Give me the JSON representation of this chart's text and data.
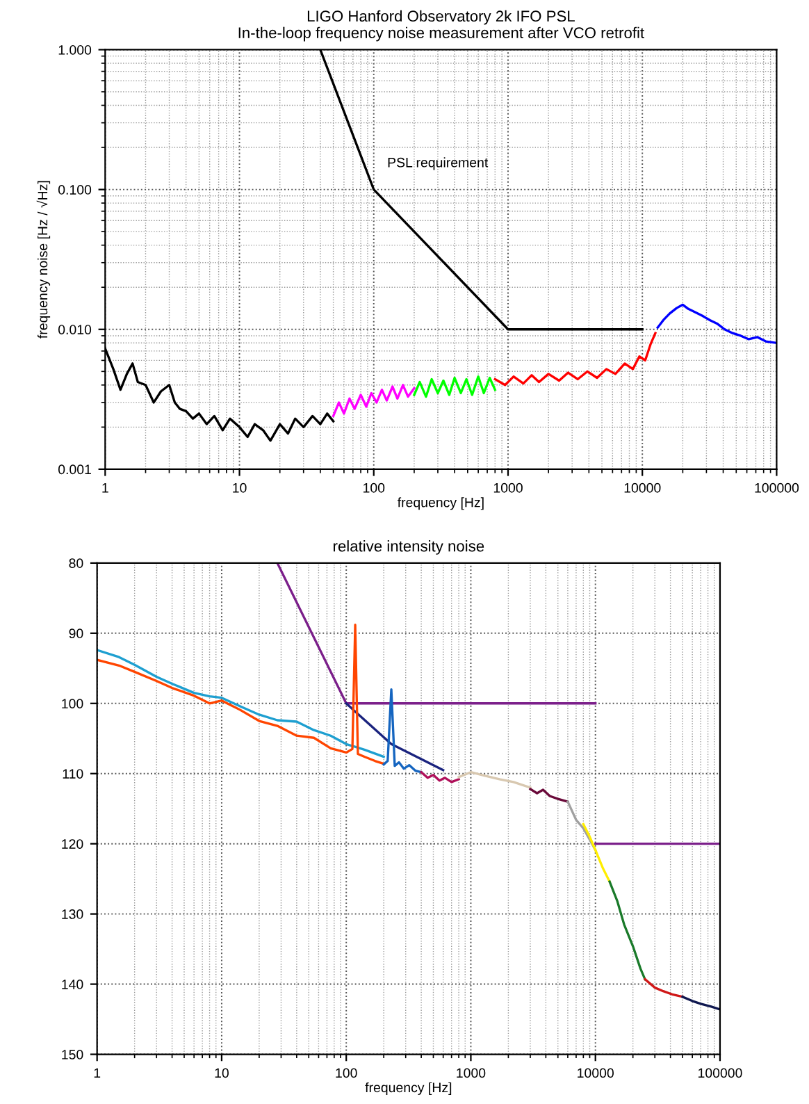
{
  "chart_data": [
    {
      "type": "line",
      "title": "LIGO Hanford Observatory 2k IFO PSL",
      "subtitle": "In-the-loop frequency noise measurement after VCO retrofit",
      "xlabel": "frequency [Hz]",
      "ylabel": "frequency noise [Hz / √Hz]",
      "log": "xy",
      "grid": true,
      "line_style": "solid",
      "marker": "none",
      "xlim": [
        1,
        100000
      ],
      "xticks": [
        1,
        10,
        100,
        1000,
        10000,
        100000
      ],
      "ylim": [
        0.001,
        1
      ],
      "yticks": [
        {
          "value": 0.001,
          "label": "0.001"
        },
        {
          "value": 0.01,
          "label": "0.010"
        },
        {
          "value": 0.1,
          "label": "0.100"
        },
        {
          "value": 1,
          "label": "1.000"
        }
      ],
      "annotations": [
        "PSL requirement"
      ],
      "series": [
        {
          "color": "#000000",
          "x": [
            1,
            1.15,
            1.3,
            1.45,
            1.6,
            1.75,
            2,
            2.3,
            2.6,
            3,
            3.3,
            3.6,
            4,
            4.5,
            5,
            5.7,
            6.5,
            7.5,
            8.5,
            10,
            11.5,
            13,
            15,
            17,
            20,
            23,
            26,
            30,
            35,
            40,
            45,
            50
          ],
          "values": [
            0.0073,
            0.0052,
            0.0037,
            0.0048,
            0.0057,
            0.0042,
            0.004,
            0.003,
            0.0036,
            0.004,
            0.003,
            0.0027,
            0.0026,
            0.0023,
            0.0025,
            0.0021,
            0.0024,
            0.0019,
            0.0023,
            0.002,
            0.0017,
            0.0021,
            0.0019,
            0.0016,
            0.0021,
            0.0018,
            0.0023,
            0.002,
            0.0024,
            0.0021,
            0.0025,
            0.0022
          ]
        },
        {
          "color": "#ff00ff",
          "x": [
            50,
            55,
            60,
            66,
            72,
            80,
            88,
            96,
            105,
            115,
            125,
            138,
            150,
            165,
            180,
            200
          ],
          "values": [
            0.0024,
            0.003,
            0.0025,
            0.0032,
            0.0027,
            0.0034,
            0.0028,
            0.0035,
            0.003,
            0.0037,
            0.0031,
            0.0039,
            0.0032,
            0.004,
            0.0033,
            0.0038
          ]
        },
        {
          "color": "#00ff00",
          "x": [
            200,
            220,
            245,
            270,
            300,
            330,
            365,
            400,
            445,
            490,
            540,
            600,
            660,
            730,
            800
          ],
          "values": [
            0.0034,
            0.0042,
            0.0033,
            0.0044,
            0.0035,
            0.0043,
            0.0034,
            0.0045,
            0.0035,
            0.0044,
            0.0034,
            0.0046,
            0.0035,
            0.0045,
            0.0037
          ]
        },
        {
          "color": "#ff0000",
          "x": [
            800,
            950,
            1100,
            1300,
            1500,
            1700,
            2000,
            2400,
            2800,
            3300,
            3900,
            4600,
            5400,
            6300,
            7400,
            8500,
            9500,
            10500,
            11500,
            12500
          ],
          "values": [
            0.0044,
            0.004,
            0.0046,
            0.0041,
            0.0047,
            0.0042,
            0.0048,
            0.0043,
            0.0049,
            0.0044,
            0.005,
            0.0045,
            0.0052,
            0.0048,
            0.0057,
            0.0052,
            0.0064,
            0.006,
            0.0078,
            0.0094
          ]
        },
        {
          "color": "#0000ff",
          "x": [
            13000,
            14500,
            16000,
            18000,
            20000,
            22000,
            25000,
            28000,
            32000,
            36000,
            41000,
            47000,
            54000,
            62000,
            72000,
            83000,
            100000
          ],
          "values": [
            0.0103,
            0.0118,
            0.013,
            0.0142,
            0.015,
            0.014,
            0.0132,
            0.0125,
            0.0116,
            0.011,
            0.01,
            0.0094,
            0.009,
            0.0085,
            0.0088,
            0.0082,
            0.008
          ]
        },
        {
          "color": "#000000",
          "x": [
            40,
            100,
            1000,
            10000
          ],
          "values": [
            1,
            0.1,
            0.01,
            0.01
          ]
        }
      ]
    },
    {
      "type": "line",
      "title": "relative intensity noise",
      "xlabel": "frequency [Hz]",
      "log": "x",
      "grid": true,
      "line_style": "solid",
      "marker": "none",
      "xlim": [
        1,
        100000
      ],
      "xticks": [
        1,
        10,
        100,
        1000,
        10000,
        100000
      ],
      "ylim": [
        150,
        80
      ],
      "yticks": [
        80,
        90,
        100,
        110,
        120,
        130,
        140,
        150
      ],
      "series": [
        {
          "color": "#7b1f8a",
          "x": [
            28,
            100,
            10000
          ],
          "values": [
            80,
            100,
            100
          ]
        },
        {
          "color": "#7b1f8a",
          "x": [
            10000,
            100000
          ],
          "values": [
            120,
            120
          ]
        },
        {
          "color": "#1a237e",
          "x": [
            100,
            230,
            600
          ],
          "values": [
            100,
            105.8,
            109.5
          ]
        },
        {
          "color": "#1e9fd0",
          "x": [
            1,
            1.5,
            2,
            3,
            4,
            6,
            8,
            10,
            14,
            20,
            28,
            40,
            55,
            75,
            100,
            140,
            200
          ],
          "values": [
            92.4,
            93.4,
            94.5,
            96.2,
            97.2,
            98.5,
            99.0,
            99.2,
            100.4,
            101.6,
            102.4,
            102.6,
            103.8,
            104.6,
            105.8,
            106.6,
            107.6
          ]
        },
        {
          "color": "#ff4500",
          "x": [
            1,
            1.5,
            2,
            3,
            4,
            6,
            8,
            10,
            14,
            20,
            28,
            40,
            55,
            75,
            100,
            112,
            118,
            124,
            140,
            170,
            200
          ],
          "values": [
            93.8,
            94.6,
            95.5,
            96.8,
            97.8,
            98.9,
            100.0,
            99.6,
            100.9,
            102.5,
            103.2,
            104.6,
            104.9,
            106.4,
            107.0,
            106.5,
            88.8,
            107.2,
            107.6,
            108.2,
            108.6
          ]
        },
        {
          "color": "#1565c0",
          "x": [
            200,
            215,
            230,
            245,
            265,
            290,
            320,
            360,
            400
          ],
          "values": [
            108.7,
            108.2,
            98,
            108.9,
            108.4,
            109.3,
            108.8,
            109.6,
            109.8
          ]
        },
        {
          "color": "#b0105a",
          "x": [
            400,
            450,
            500,
            560,
            620,
            700,
            800
          ],
          "values": [
            109.8,
            110.6,
            110.2,
            111.0,
            110.6,
            111.2,
            110.8
          ]
        },
        {
          "color": "#d8c8b0",
          "x": [
            800,
            1000,
            1300,
            1700,
            2200,
            3000
          ],
          "values": [
            110.5,
            109.8,
            110.3,
            110.8,
            111.2,
            112.0
          ]
        },
        {
          "color": "#6a0a3a",
          "x": [
            3000,
            3400,
            3800,
            4300,
            5000,
            6000
          ],
          "values": [
            112.2,
            112.8,
            112.3,
            113.2,
            113.6,
            114.0
          ]
        },
        {
          "color": "#a0a0a0",
          "x": [
            6000,
            7000,
            8000,
            9000,
            10000
          ],
          "values": [
            114.0,
            116.6,
            117.8,
            119.4,
            120.9
          ]
        },
        {
          "color": "#ffee00",
          "x": [
            8000,
            9000,
            10000,
            11500,
            13000
          ],
          "values": [
            117.2,
            119.0,
            120.9,
            123.5,
            125.4
          ]
        },
        {
          "color": "#1a7a2a",
          "x": [
            13000,
            15000,
            17000,
            20000,
            23000,
            25000
          ],
          "values": [
            125.4,
            128.2,
            131.5,
            134.6,
            137.8,
            139.3
          ]
        },
        {
          "color": "#d01818",
          "x": [
            25000,
            30000,
            35000,
            42000,
            50000
          ],
          "values": [
            139.3,
            140.5,
            141.0,
            141.5,
            141.8
          ]
        },
        {
          "color": "#101850",
          "x": [
            50000,
            60000,
            70000,
            85000,
            100000
          ],
          "values": [
            141.8,
            142.4,
            142.8,
            143.2,
            143.6
          ]
        }
      ]
    }
  ]
}
